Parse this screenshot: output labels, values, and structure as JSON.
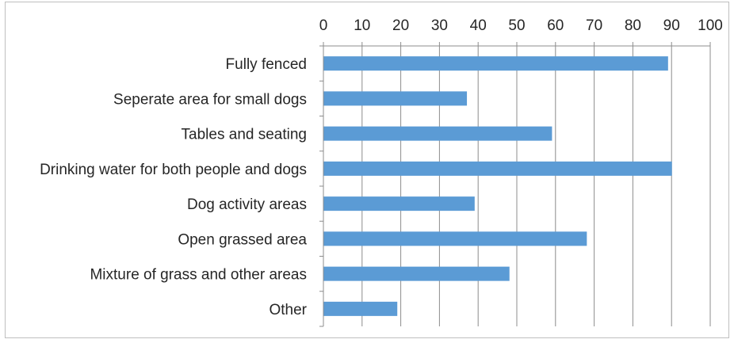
{
  "chart_data": {
    "type": "bar",
    "orientation": "horizontal",
    "title": "",
    "xlabel": "",
    "ylabel": "",
    "categories": [
      "Fully fenced",
      "Seperate area for small dogs",
      "Tables and seating",
      "Drinking water for both people and dogs",
      "Dog activity areas",
      "Open grassed area",
      "Mixture of grass and other areas",
      "Other"
    ],
    "values": [
      89,
      37,
      59,
      90,
      39,
      68,
      48,
      19
    ],
    "xlim": [
      0,
      100
    ],
    "ticks": [
      "0",
      "10",
      "20",
      "30",
      "40",
      "50",
      "60",
      "70",
      "80",
      "90",
      "100"
    ],
    "axis_position": "top",
    "grid": true,
    "legend": "none",
    "bar_color": "#5b9bd5",
    "grid_color": "#8c8c8c"
  }
}
